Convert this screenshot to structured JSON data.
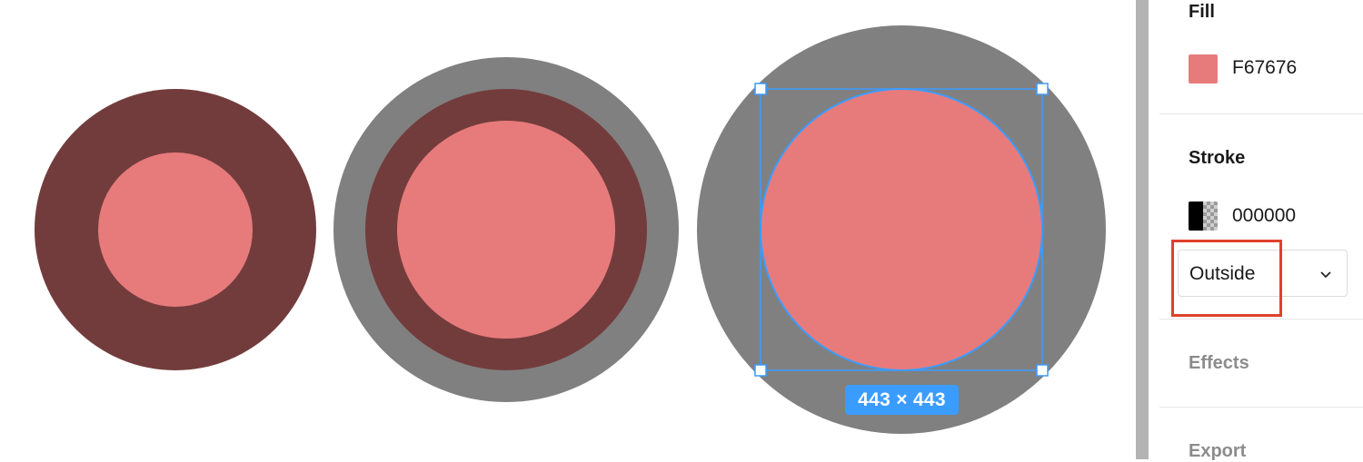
{
  "canvas": {
    "selection_size": "443 × 443",
    "colors": {
      "fill": "#e77b7b",
      "dark_ring": "#733c3c",
      "outer_ring": "#808080",
      "selection": "#3b9cff"
    }
  },
  "panel": {
    "fill": {
      "title": "Fill",
      "hex": "F67676",
      "swatch_color": "#e77b7b"
    },
    "stroke": {
      "title": "Stroke",
      "hex": "000000",
      "position": "Outside"
    },
    "effects": {
      "title": "Effects"
    },
    "export": {
      "title": "Export"
    }
  },
  "annotation": {
    "highlight_color": "#e0412c"
  }
}
